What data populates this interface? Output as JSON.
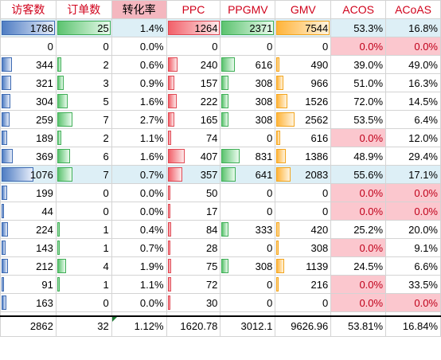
{
  "headers": [
    "访客数",
    "订单数",
    "转化率",
    "PPC",
    "PPGMV",
    "GMV",
    "ACOS",
    "ACoAS"
  ],
  "rows": [
    {
      "visitors": "1786",
      "orders": "25",
      "cvr": "1.4%",
      "ppc": "1264",
      "ppgmv": "2371",
      "gmv": "7544",
      "acos": "53.3%",
      "acoas": "16.8%",
      "highlight": true,
      "acos_pink": false,
      "acoas_pink": false
    },
    {
      "visitors": "0",
      "orders": "0",
      "cvr": "0.0%",
      "ppc": "0",
      "ppgmv": "0",
      "gmv": "0",
      "acos": "0.0%",
      "acoas": "0.0%",
      "highlight": false,
      "acos_pink": true,
      "acoas_pink": true
    },
    {
      "visitors": "344",
      "orders": "2",
      "cvr": "0.6%",
      "ppc": "240",
      "ppgmv": "616",
      "gmv": "490",
      "acos": "39.0%",
      "acoas": "49.0%",
      "highlight": false,
      "acos_pink": false,
      "acoas_pink": false
    },
    {
      "visitors": "321",
      "orders": "3",
      "cvr": "0.9%",
      "ppc": "157",
      "ppgmv": "308",
      "gmv": "966",
      "acos": "51.0%",
      "acoas": "16.3%",
      "highlight": false,
      "acos_pink": false,
      "acoas_pink": false
    },
    {
      "visitors": "304",
      "orders": "5",
      "cvr": "1.6%",
      "ppc": "222",
      "ppgmv": "308",
      "gmv": "1526",
      "acos": "72.0%",
      "acoas": "14.5%",
      "highlight": false,
      "acos_pink": false,
      "acoas_pink": false
    },
    {
      "visitors": "259",
      "orders": "7",
      "cvr": "2.7%",
      "ppc": "165",
      "ppgmv": "308",
      "gmv": "2562",
      "acos": "53.5%",
      "acoas": "6.4%",
      "highlight": false,
      "acos_pink": false,
      "acoas_pink": false
    },
    {
      "visitors": "189",
      "orders": "2",
      "cvr": "1.1%",
      "ppc": "74",
      "ppgmv": "0",
      "gmv": "616",
      "acos": "0.0%",
      "acoas": "12.0%",
      "highlight": false,
      "acos_pink": true,
      "acoas_pink": false
    },
    {
      "visitors": "369",
      "orders": "6",
      "cvr": "1.6%",
      "ppc": "407",
      "ppgmv": "831",
      "gmv": "1386",
      "acos": "48.9%",
      "acoas": "29.4%",
      "highlight": false,
      "acos_pink": false,
      "acoas_pink": false
    },
    {
      "visitors": "1076",
      "orders": "7",
      "cvr": "0.7%",
      "ppc": "357",
      "ppgmv": "641",
      "gmv": "2083",
      "acos": "55.6%",
      "acoas": "17.1%",
      "highlight": true,
      "acos_pink": false,
      "acoas_pink": false
    },
    {
      "visitors": "199",
      "orders": "0",
      "cvr": "0.0%",
      "ppc": "50",
      "ppgmv": "0",
      "gmv": "0",
      "acos": "0.0%",
      "acoas": "0.0%",
      "highlight": false,
      "acos_pink": true,
      "acoas_pink": true
    },
    {
      "visitors": "44",
      "orders": "0",
      "cvr": "0.0%",
      "ppc": "17",
      "ppgmv": "0",
      "gmv": "0",
      "acos": "0.0%",
      "acoas": "0.0%",
      "highlight": false,
      "acos_pink": true,
      "acoas_pink": true
    },
    {
      "visitors": "224",
      "orders": "1",
      "cvr": "0.4%",
      "ppc": "84",
      "ppgmv": "333",
      "gmv": "420",
      "acos": "25.2%",
      "acoas": "20.0%",
      "highlight": false,
      "acos_pink": false,
      "acoas_pink": false
    },
    {
      "visitors": "143",
      "orders": "1",
      "cvr": "0.7%",
      "ppc": "28",
      "ppgmv": "0",
      "gmv": "308",
      "acos": "0.0%",
      "acoas": "9.1%",
      "highlight": false,
      "acos_pink": true,
      "acoas_pink": false
    },
    {
      "visitors": "212",
      "orders": "4",
      "cvr": "1.9%",
      "ppc": "75",
      "ppgmv": "308",
      "gmv": "1139",
      "acos": "24.5%",
      "acoas": "6.6%",
      "highlight": false,
      "acos_pink": false,
      "acoas_pink": false
    },
    {
      "visitors": "91",
      "orders": "1",
      "cvr": "1.1%",
      "ppc": "72",
      "ppgmv": "0",
      "gmv": "216",
      "acos": "0.0%",
      "acoas": "33.5%",
      "highlight": false,
      "acos_pink": true,
      "acoas_pink": false
    },
    {
      "visitors": "163",
      "orders": "0",
      "cvr": "0.0%",
      "ppc": "30",
      "ppgmv": "0",
      "gmv": "0",
      "acos": "0.0%",
      "acoas": "0.0%",
      "highlight": false,
      "acos_pink": true,
      "acoas_pink": true
    }
  ],
  "totals": {
    "visitors": "2862",
    "orders": "32",
    "cvr": "1.12%",
    "ppc": "1620.78",
    "ppgmv": "3012.1",
    "gmv": "9626.96",
    "acos": "53.81%",
    "acoas": "16.84%"
  },
  "colors": {
    "highlight_row": "#ddeff6",
    "pink_cell": "#fbc7ce",
    "header_red": "#d0021b",
    "bar_visitors": "#4f7dc3",
    "bar_orders": "#5cc36f",
    "bar_ppc": "#f2616a",
    "bar_ppgmv": "#5cc36f",
    "bar_gmv": "#ffb43a"
  }
}
